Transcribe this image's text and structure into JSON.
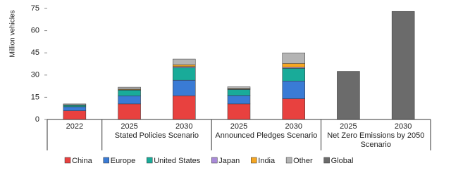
{
  "chart_data": {
    "type": "stacked-bar",
    "ylabel": "Million vehicles",
    "ylim": [
      0,
      75
    ],
    "yticks": [
      0,
      15,
      30,
      45,
      60,
      75
    ],
    "groups": [
      {
        "label": null,
        "categories": [
          "2022"
        ]
      },
      {
        "label": "Stated Policies Scenario",
        "categories": [
          "2025",
          "2030"
        ]
      },
      {
        "label": "Announced Pledges Scenario",
        "categories": [
          "2025",
          "2030"
        ]
      },
      {
        "label": "Net Zero Emissions by 2050 Scenario",
        "categories": [
          "2025",
          "2030"
        ]
      }
    ],
    "series": [
      {
        "name": "China",
        "color": "#e8413f",
        "values": [
          5.9,
          10.5,
          16,
          10.5,
          14,
          null,
          null
        ]
      },
      {
        "name": "Europe",
        "color": "#3a7bd5",
        "values": [
          2.7,
          5.5,
          10.5,
          5.7,
          12,
          null,
          null
        ]
      },
      {
        "name": "United States",
        "color": "#19ab99",
        "values": [
          1.0,
          3.8,
          8.5,
          4,
          8.5,
          null,
          null
        ]
      },
      {
        "name": "Japan",
        "color": "#a98ad8",
        "values": [
          0.2,
          0.3,
          0.7,
          0.3,
          0.8,
          null,
          null
        ]
      },
      {
        "name": "India",
        "color": "#f5a623",
        "values": [
          0.1,
          0.4,
          1.3,
          0.4,
          2.5,
          null,
          null
        ]
      },
      {
        "name": "Other",
        "color": "#b4b4b4",
        "values": [
          0.6,
          1.3,
          3.8,
          1.2,
          7.2,
          null,
          null
        ]
      },
      {
        "name": "Global",
        "color": "#6b6b6b",
        "values": [
          null,
          null,
          null,
          null,
          null,
          32.5,
          73
        ]
      }
    ]
  }
}
